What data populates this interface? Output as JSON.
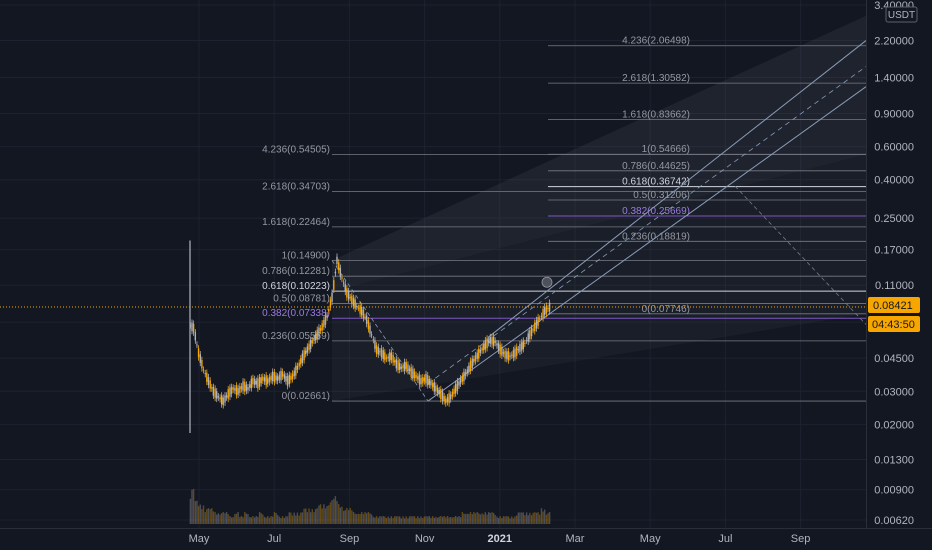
{
  "chart_data": {
    "type": "candlestick",
    "quote_unit": "USDT",
    "y_scale": "log",
    "ylim": [
      0.0062,
      3.4
    ],
    "x_tick_labels": [
      "May",
      "Jul",
      "Sep",
      "Nov",
      "2021",
      "Mar",
      "May",
      "Jul",
      "Sep"
    ],
    "x_bold_tick": "2021",
    "y_tick_labels": [
      "3.40000",
      "2.20000",
      "1.40000",
      "0.90000",
      "0.60000",
      "0.40000",
      "0.25000",
      "0.17000",
      "0.11000",
      "0.07000",
      "0.04500",
      "0.03000",
      "0.02000",
      "0.01300",
      "0.00900",
      "0.00620"
    ],
    "last_price": "0.08421",
    "countdown": "04:43:50",
    "price_series": [
      0.065,
      0.048,
      0.039,
      0.034,
      0.03,
      0.028,
      0.0265,
      0.029,
      0.031,
      0.03,
      0.032,
      0.031,
      0.034,
      0.033,
      0.035,
      0.034,
      0.036,
      0.035,
      0.037,
      0.034,
      0.036,
      0.04,
      0.045,
      0.05,
      0.055,
      0.06,
      0.066,
      0.075,
      0.095,
      0.149,
      0.12,
      0.1,
      0.092,
      0.085,
      0.08,
      0.072,
      0.06,
      0.05,
      0.048,
      0.045,
      0.046,
      0.042,
      0.04,
      0.041,
      0.038,
      0.036,
      0.034,
      0.035,
      0.033,
      0.031,
      0.029,
      0.0266,
      0.028,
      0.031,
      0.034,
      0.037,
      0.041,
      0.045,
      0.049,
      0.053,
      0.056,
      0.055,
      0.05,
      0.047,
      0.046,
      0.048,
      0.051,
      0.054,
      0.06,
      0.066,
      0.073,
      0.08,
      0.0842
    ],
    "volume_series": [
      9,
      6,
      5,
      4,
      4,
      3,
      3,
      3,
      2,
      3,
      2,
      3,
      2,
      2,
      3,
      2,
      2,
      3,
      2,
      2,
      3,
      3,
      3,
      4,
      4,
      4,
      5,
      5,
      6,
      7,
      5,
      4,
      4,
      3,
      3,
      3,
      3,
      2,
      2,
      2,
      2,
      2,
      2,
      2,
      2,
      2,
      2,
      2,
      2,
      2,
      2,
      2,
      2,
      2,
      2,
      3,
      3,
      3,
      3,
      3,
      3,
      3,
      2,
      2,
      2,
      2,
      3,
      3,
      3,
      3,
      3,
      4,
      3
    ],
    "fib_sets": [
      {
        "name": "",
        "levels": [
          {
            "label": "4.236(0.54505)",
            "value": 0.54505
          },
          {
            "label": "2.618(0.34703)",
            "value": 0.34703
          },
          {
            "label": "1.618(0.22464)",
            "value": 0.22464
          },
          {
            "label": "1(0.14900)",
            "value": 0.149
          },
          {
            "label": "0.786(0.12281)",
            "value": 0.12281
          },
          {
            "label": "0.618(0.10223)",
            "value": 0.10223
          },
          {
            "label": "0.5(0.08781)",
            "value": 0.08781
          },
          {
            "label": "0.382(0.07338)",
            "value": 0.07338
          },
          {
            "label": "0.236(0.05559)",
            "value": 0.05559
          },
          {
            "label": "0(0.02661)",
            "value": 0.02661
          }
        ]
      },
      {
        "name": "",
        "levels": [
          {
            "label": "4.236(2.06498)",
            "value": 2.06498
          },
          {
            "label": "2.618(1.30582)",
            "value": 1.30582
          },
          {
            "label": "1.618(0.83662)",
            "value": 0.83662
          },
          {
            "label": "1(0.54666)",
            "value": 0.54666
          },
          {
            "label": "0.786(0.44625)",
            "value": 0.44625
          },
          {
            "label": "0.618(0.36742)",
            "value": 0.36742
          },
          {
            "label": "0.5(0.31206)",
            "value": 0.31206
          },
          {
            "label": "0.382(0.25669)",
            "value": 0.25669
          },
          {
            "label": "0.236(0.18819)",
            "value": 0.18819
          },
          {
            "label": "0(0.07746)",
            "value": 0.07746
          }
        ]
      }
    ],
    "colors": {
      "background": "#131722",
      "grid": "#1e2230",
      "candle_up": "#b2b5be",
      "candle_down": "#f7a600",
      "fib_line": "#787b86",
      "fib_highlight": "#d1d4dc",
      "fib_382": "#7e57c2",
      "channel": "#8a9bb8",
      "last_price": "#f7a600"
    }
  }
}
